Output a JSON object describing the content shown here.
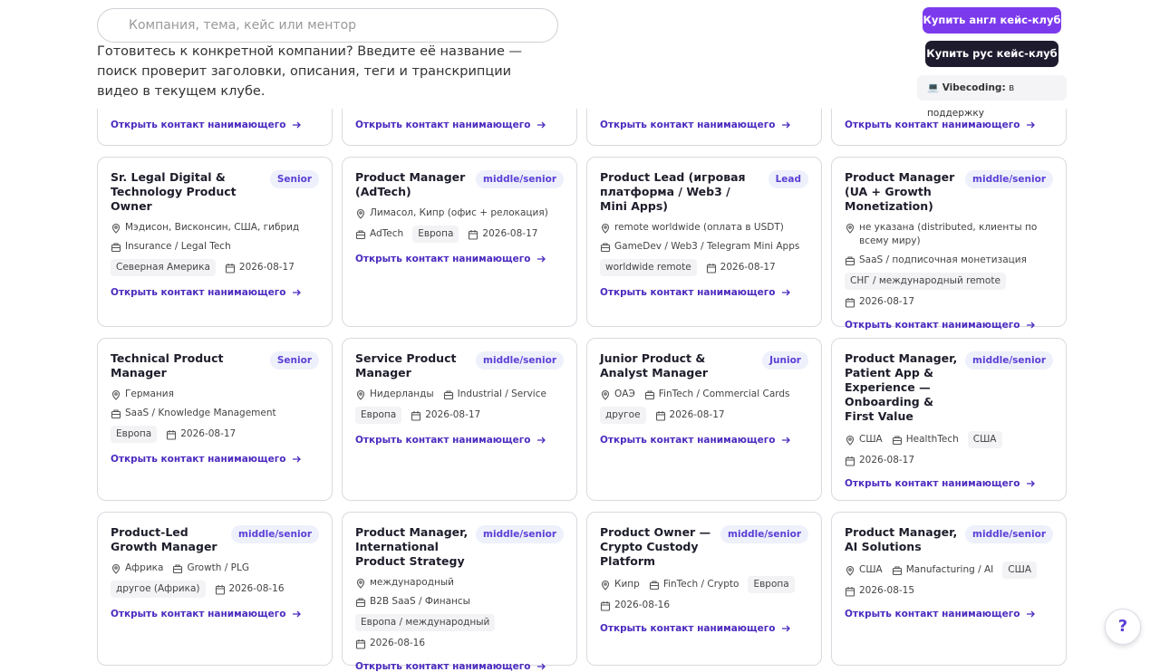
{
  "search": {
    "placeholder": "Компания, тема, кейс или ментор",
    "hint": "Готовитесь к конкретной компании? Введите её название — поиск проверит заголовки, описания, теги и транскрипции видео в текущем клубе."
  },
  "actions": {
    "buy_en": "Купить англ кейс-клуб",
    "buy_ru": "Купить рус кейс-клуб",
    "vibe_label": "💻 Vibecoding:",
    "vibe_status": "в поддержку"
  },
  "contact_link": "Открыть контакт нанимающего",
  "partial_cards": 4,
  "cards": [
    {
      "title": "Sr. Legal Digital & Technology Product Owner",
      "level": "Senior",
      "location": "Мэдисон, Висконсин, США, гибрид",
      "industry": "Insurance / Legal Tech",
      "region": "Северная Америка",
      "date": "2026-08-17"
    },
    {
      "title": "Product Manager (AdTech)",
      "level": "middle/senior",
      "location": "Лимасол, Кипр (офис + релокация)",
      "industry": "AdTech",
      "region": "Европа",
      "date": "2026-08-17"
    },
    {
      "title": "Product Lead (игровая платформа / Web3 / Mini Apps)",
      "level": "Lead",
      "location": "remote worldwide (оплата в USDT)",
      "industry": "GameDev / Web3 / Telegram Mini Apps",
      "region": "worldwide remote",
      "date": "2026-08-17"
    },
    {
      "title": "Product Manager (UA + Growth Monetization)",
      "level": "middle/senior",
      "location": "не указана (distributed, клиенты по всему миру)",
      "industry": "SaaS / подписочная монетизация",
      "region": "СНГ / международный remote",
      "date": "2026-08-17"
    },
    {
      "title": "Technical Product Manager",
      "level": "Senior",
      "location": "Германия",
      "industry": "SaaS / Knowledge Management",
      "region": "Европа",
      "date": "2026-08-17"
    },
    {
      "title": "Service Product Manager",
      "level": "middle/senior",
      "location": "Нидерланды",
      "industry": "Industrial / Service",
      "region": "Европа",
      "date": "2026-08-17"
    },
    {
      "title": "Junior Product & Analyst Manager",
      "level": "Junior",
      "location": "ОАЭ",
      "industry": "FinTech / Commercial Cards",
      "region": "другое",
      "date": "2026-08-17"
    },
    {
      "title": "Product Manager, Patient App & Experience — Onboarding & First Value",
      "level": "middle/senior",
      "location": "США",
      "industry": "HealthTech",
      "region": "США",
      "date": "2026-08-17"
    },
    {
      "title": "Product-Led Growth Manager",
      "level": "middle/senior",
      "location": "Африка",
      "industry": "Growth / PLG",
      "region": "другое (Африка)",
      "date": "2026-08-16"
    },
    {
      "title": "Product Manager, International Product Strategy",
      "level": "middle/senior",
      "location": "международный",
      "industry": "B2B SaaS / Финансы",
      "region": "Европа / международный",
      "date": "2026-08-16"
    },
    {
      "title": "Product Owner — Crypto Custody Platform",
      "level": "middle/senior",
      "location": "Кипр",
      "industry": "FinTech / Crypto",
      "region": "Европа",
      "date": "2026-08-16"
    },
    {
      "title": "Product Manager, AI Solutions",
      "level": "middle/senior",
      "location": "США",
      "industry": "Manufacturing / AI",
      "region": "США",
      "date": "2026-08-15"
    }
  ],
  "help": "?"
}
